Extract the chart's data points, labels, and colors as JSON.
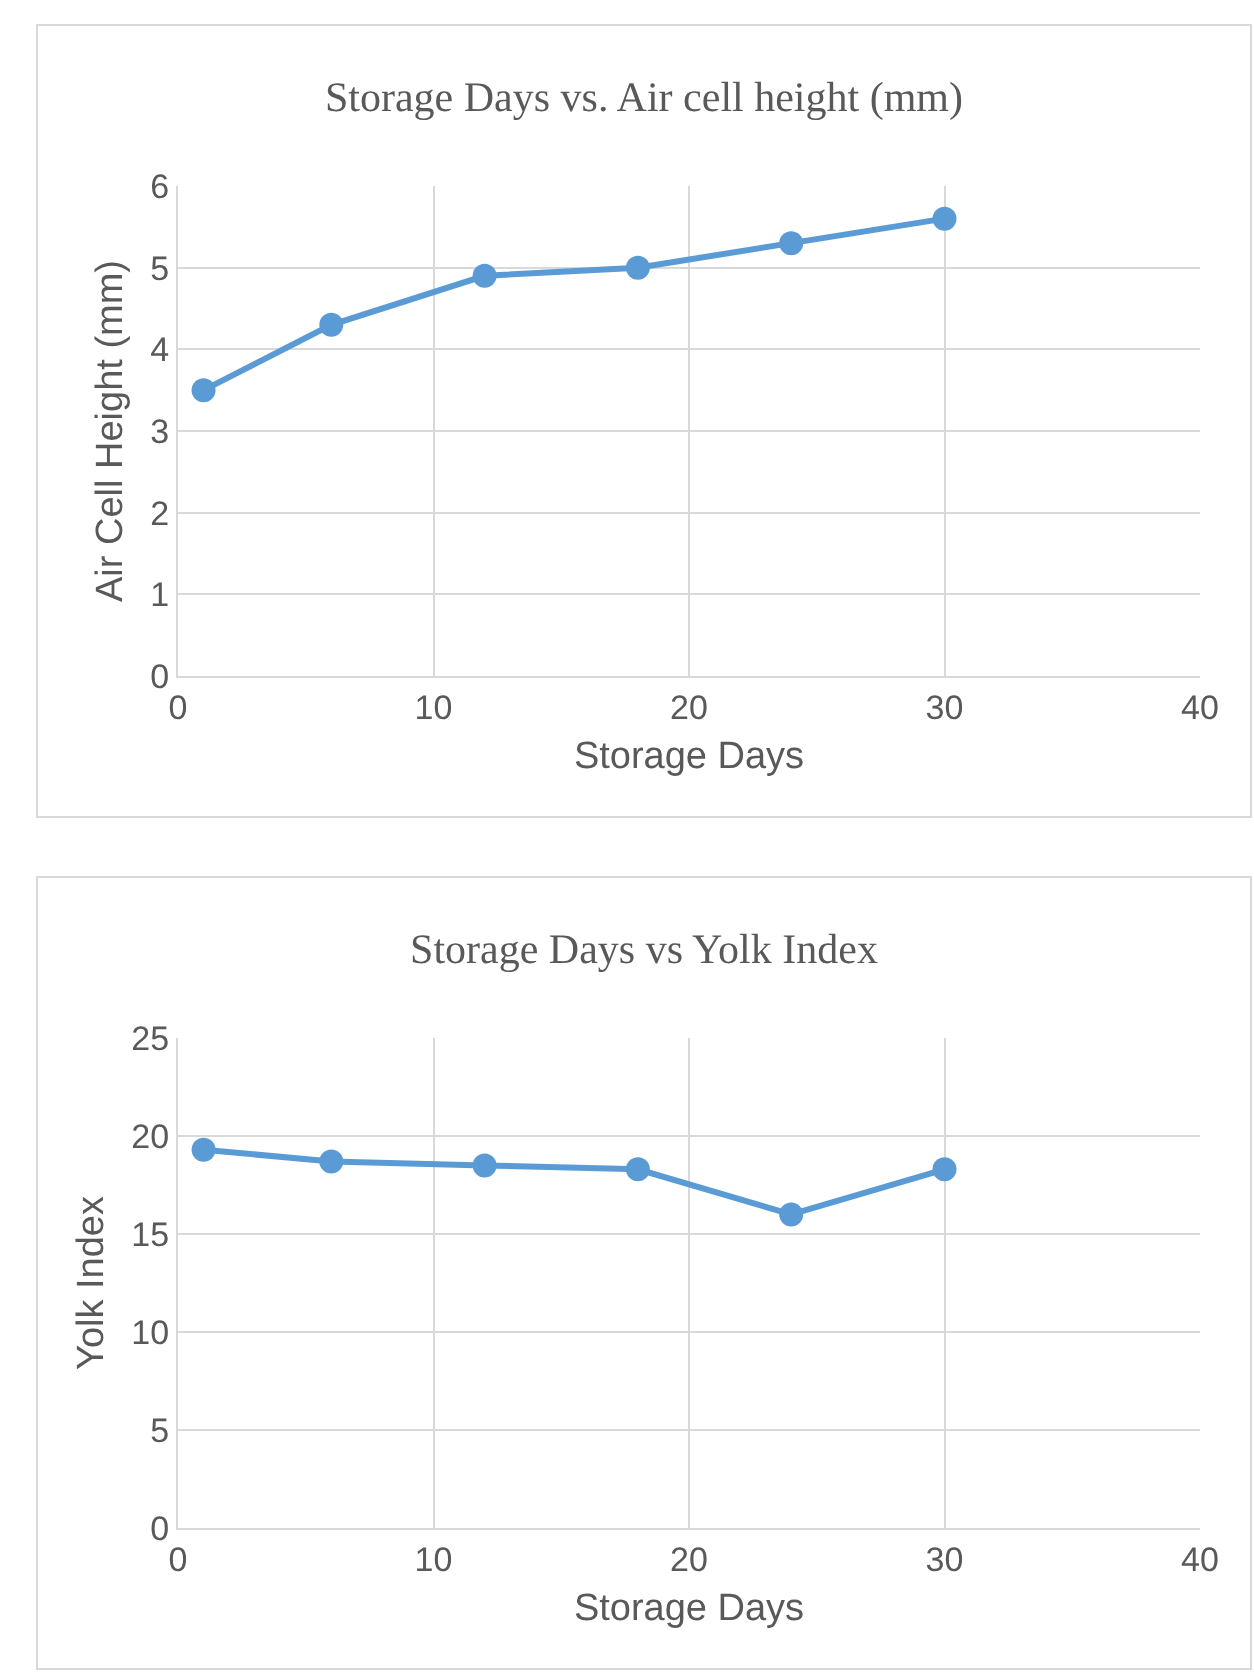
{
  "chart_data": [
    {
      "type": "line",
      "title": "Storage Days vs. Air cell height (mm)",
      "xlabel": "Storage Days",
      "ylabel": "Air Cell Height (mm)",
      "x": [
        1,
        6,
        12,
        18,
        24,
        30
      ],
      "series": [
        {
          "color": "#5b9bd5",
          "values": [
            3.5,
            4.3,
            4.9,
            5.0,
            5.3,
            5.6
          ]
        }
      ],
      "xlim": [
        0,
        40
      ],
      "xticks": [
        0,
        10,
        20,
        30,
        40
      ],
      "ylim": [
        0,
        6
      ],
      "yticks": [
        0,
        1,
        2,
        3,
        4,
        5,
        6
      ],
      "grid": true,
      "marker": "circle",
      "line_style": "solid"
    },
    {
      "type": "line",
      "title": "Storage Days vs Yolk Index",
      "xlabel": "Storage Days",
      "ylabel": "Yolk Index",
      "x": [
        1,
        6,
        12,
        18,
        24,
        30
      ],
      "series": [
        {
          "color": "#5b9bd5",
          "values": [
            19.3,
            18.7,
            18.5,
            18.3,
            16.0,
            18.3
          ]
        }
      ],
      "xlim": [
        0,
        40
      ],
      "xticks": [
        0,
        10,
        20,
        30,
        40
      ],
      "ylim": [
        0,
        25
      ],
      "yticks": [
        0,
        5,
        10,
        15,
        20,
        25
      ],
      "grid": true,
      "marker": "circle",
      "line_style": "solid"
    }
  ]
}
